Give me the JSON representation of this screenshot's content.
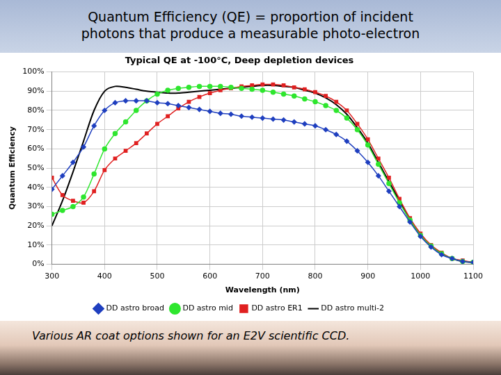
{
  "slide": {
    "heading": [
      "Quantum Efficiency (QE) = proportion of incident",
      "photons that produce a measurable photo-electron"
    ],
    "caption": "Various AR coat options shown for an E2V scientific CCD."
  },
  "chart_data": {
    "type": "line",
    "title": "Typical QE at -100°C, Deep depletion devices",
    "x_label": "Wavelength (nm)",
    "y_label": "Quantum Efficiency",
    "x": [
      300,
      320,
      340,
      360,
      380,
      400,
      420,
      440,
      460,
      480,
      500,
      520,
      540,
      560,
      580,
      600,
      620,
      640,
      660,
      680,
      700,
      720,
      740,
      760,
      780,
      800,
      820,
      840,
      860,
      880,
      900,
      920,
      940,
      960,
      980,
      1000,
      1020,
      1040,
      1060,
      1080,
      1100
    ],
    "series": [
      {
        "name": "DD astro broad",
        "color": "#1f3fbf",
        "marker": "diamond",
        "line_style": "solid",
        "values": [
          39,
          46,
          53,
          61,
          72,
          80,
          84,
          85,
          85,
          85,
          84,
          83.5,
          82.5,
          81.5,
          80.5,
          79.5,
          78.5,
          78,
          77,
          76.5,
          76,
          75.5,
          75,
          74,
          73,
          72,
          70,
          67.5,
          64,
          59,
          53,
          46,
          38,
          30,
          22,
          14.5,
          9,
          5,
          3,
          1.5,
          1
        ]
      },
      {
        "name": "DD astro mid",
        "color": "#2ee62e",
        "marker": "circle",
        "line_style": "solid",
        "values": [
          26,
          28,
          30,
          35,
          47,
          60,
          68,
          74,
          80,
          85,
          88.5,
          90.5,
          91.5,
          92,
          92.5,
          92.5,
          92.5,
          92,
          91.5,
          91,
          90.5,
          89.5,
          88.5,
          87.5,
          86,
          84.5,
          82.5,
          80,
          76,
          70,
          62,
          52,
          42,
          32,
          23,
          15,
          9.5,
          5.5,
          3,
          1.5,
          1
        ]
      },
      {
        "name": "DD astro ER1",
        "color": "#e02020",
        "marker": "square",
        "line_style": "solid",
        "values": [
          45,
          36,
          33,
          32,
          38,
          49,
          55,
          59,
          63,
          68,
          73,
          77,
          81,
          84.5,
          87,
          89,
          90.5,
          91.5,
          92.5,
          93,
          93.5,
          93.5,
          93,
          92,
          91,
          89.5,
          87.5,
          84.5,
          80,
          73,
          65,
          55,
          45,
          34,
          24,
          16,
          10,
          6,
          3,
          2,
          1
        ]
      },
      {
        "name": "DD astro multi-2",
        "color": "#000000",
        "marker": "none",
        "line_style": "solid",
        "values": [
          20,
          33,
          48,
          64,
          80,
          90,
          92.5,
          92,
          91,
          90,
          89.5,
          89,
          89,
          89.5,
          90,
          90.5,
          91,
          91.5,
          92,
          92.5,
          93,
          93,
          92.5,
          92,
          90.5,
          89,
          86.5,
          83,
          78,
          71,
          63,
          53,
          43,
          33,
          23,
          15,
          9.5,
          5.5,
          3,
          1.5,
          1
        ]
      }
    ],
    "xlim": [
      300,
      1100
    ],
    "xticks": [
      300,
      400,
      500,
      600,
      700,
      800,
      900,
      1000,
      1100
    ],
    "ylim": [
      0,
      100
    ],
    "yticks": [
      {
        "value": 0,
        "label": "0%"
      },
      {
        "value": 10,
        "label": "10%"
      },
      {
        "value": 20,
        "label": "20%"
      },
      {
        "value": 30,
        "label": "30%"
      },
      {
        "value": 40,
        "label": "40%"
      },
      {
        "value": 50,
        "label": "50%"
      },
      {
        "value": 60,
        "label": "60%"
      },
      {
        "value": 70,
        "label": "70%"
      },
      {
        "value": 80,
        "label": "80%"
      },
      {
        "value": 90,
        "label": "90%"
      },
      {
        "value": 100,
        "label": "100%"
      }
    ],
    "grid": true,
    "legend": "bottom"
  }
}
